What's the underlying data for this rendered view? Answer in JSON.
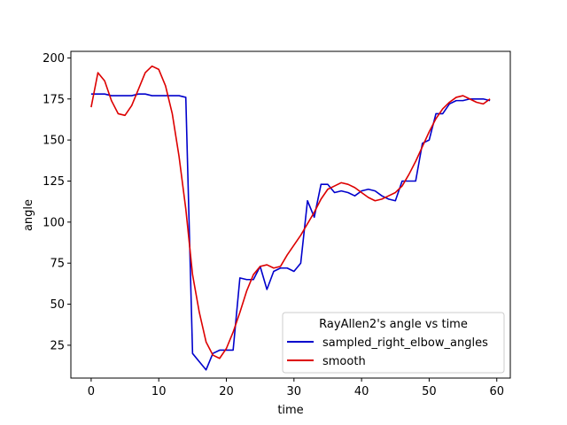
{
  "chart_data": {
    "type": "line",
    "title": "",
    "xlabel": "time",
    "ylabel": "angle",
    "xlim": [
      -3,
      62
    ],
    "ylim": [
      5,
      204
    ],
    "xticks": [
      0,
      10,
      20,
      30,
      40,
      50,
      60
    ],
    "yticks": [
      25,
      50,
      75,
      100,
      125,
      150,
      175,
      200
    ],
    "grid": false,
    "legend": {
      "title": "RayAllen2's angle vs time",
      "placement": "lower-right"
    },
    "series": [
      {
        "name": "sampled_right_elbow_angles",
        "color": "#0000cc",
        "x": [
          0,
          1,
          2,
          3,
          4,
          5,
          6,
          7,
          8,
          9,
          10,
          11,
          12,
          13,
          14,
          15,
          16,
          17,
          18,
          19,
          20,
          21,
          22,
          23,
          24,
          25,
          26,
          27,
          28,
          29,
          30,
          31,
          32,
          33,
          34,
          35,
          36,
          37,
          38,
          39,
          40,
          41,
          42,
          43,
          44,
          45,
          46,
          47,
          48,
          49,
          50,
          51,
          52,
          53,
          54,
          55,
          56,
          57,
          58,
          59
        ],
        "y": [
          178,
          178,
          178,
          177,
          177,
          177,
          177,
          178,
          178,
          177,
          177,
          177,
          177,
          177,
          176,
          20,
          15,
          10,
          20,
          22,
          22,
          22,
          66,
          65,
          65,
          73,
          59,
          70,
          72,
          72,
          70,
          75,
          113,
          103,
          123,
          123,
          118,
          119,
          118,
          116,
          119,
          120,
          119,
          116,
          114,
          113,
          125,
          125,
          125,
          148,
          150,
          166,
          166,
          172,
          174,
          174,
          175,
          175,
          175,
          174
        ]
      },
      {
        "name": "smooth",
        "color": "#dd0000",
        "x": [
          0,
          1,
          2,
          3,
          4,
          5,
          6,
          7,
          8,
          9,
          10,
          11,
          12,
          13,
          14,
          15,
          16,
          17,
          18,
          19,
          20,
          21,
          22,
          23,
          24,
          25,
          26,
          27,
          28,
          29,
          30,
          31,
          32,
          33,
          34,
          35,
          36,
          37,
          38,
          39,
          40,
          41,
          42,
          43,
          44,
          45,
          46,
          47,
          48,
          49,
          50,
          51,
          52,
          53,
          54,
          55,
          56,
          57,
          58,
          59
        ],
        "y": [
          170,
          191,
          186,
          174,
          166,
          165,
          171,
          181,
          191,
          195,
          193,
          183,
          166,
          140,
          108,
          68,
          45,
          27,
          19,
          17,
          23,
          33,
          45,
          58,
          68,
          73,
          74,
          72,
          73,
          80,
          86,
          92,
          99,
          106,
          114,
          120,
          122,
          124,
          123,
          121,
          118,
          115,
          113,
          114,
          116,
          118,
          122,
          129,
          137,
          146,
          155,
          163,
          169,
          173,
          176,
          177,
          175,
          173,
          172,
          175
        ]
      }
    ]
  }
}
